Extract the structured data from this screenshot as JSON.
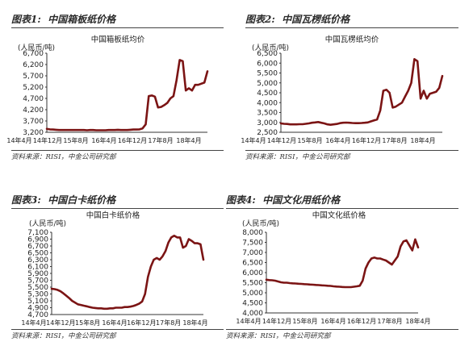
{
  "chart_data": [
    {
      "figure_label": "图表1:",
      "figure_title": "中国箱板纸价格",
      "source": "资料来源：RISI，中金公司研究部",
      "type": "line",
      "title": "中国箱板纸均价",
      "unit": "(人民币/吨)",
      "ylim": [
        3200,
        6700
      ],
      "yticks": [
        "3,200",
        "3,700",
        "4,200",
        "4,700",
        "5,200",
        "5,700",
        "6,200",
        "6,700"
      ],
      "ytick_values": [
        3200,
        3700,
        4200,
        4700,
        5200,
        5700,
        6200,
        6700
      ],
      "xticks": [
        "14年4月",
        "14年12月",
        "15年8月",
        "16年4月",
        "16年12月",
        "17年8月",
        "18年4月"
      ],
      "x": [
        "2014-01",
        "2014-02",
        "2014-03",
        "2014-04",
        "2014-05",
        "2014-06",
        "2014-07",
        "2014-08",
        "2014-09",
        "2014-10",
        "2014-11",
        "2014-12",
        "2015-01",
        "2015-02",
        "2015-03",
        "2015-04",
        "2015-05",
        "2015-06",
        "2015-07",
        "2015-08",
        "2015-09",
        "2015-10",
        "2015-11",
        "2015-12",
        "2016-01",
        "2016-02",
        "2016-03",
        "2016-04",
        "2016-05",
        "2016-06",
        "2016-07",
        "2016-08",
        "2016-09",
        "2016-10",
        "2016-11",
        "2016-12",
        "2017-01",
        "2017-02",
        "2017-03",
        "2017-04",
        "2017-05",
        "2017-06",
        "2017-07",
        "2017-08",
        "2017-09",
        "2017-10",
        "2017-11",
        "2017-12",
        "2018-01",
        "2018-02",
        "2018-03",
        "2018-04",
        "2018-05"
      ],
      "series": [
        {
          "color": "#7b1414",
          "values": [
            3350,
            3330,
            3320,
            3310,
            3300,
            3300,
            3300,
            3300,
            3300,
            3300,
            3300,
            3300,
            3300,
            3290,
            3300,
            3300,
            3290,
            3290,
            3290,
            3290,
            3300,
            3300,
            3300,
            3310,
            3300,
            3300,
            3300,
            3310,
            3320,
            3320,
            3330,
            3370,
            3550,
            4800,
            4830,
            4780,
            4300,
            4320,
            4400,
            4500,
            4700,
            4800,
            5500,
            6400,
            6350,
            5050,
            5150,
            5050,
            5300,
            5300,
            5350,
            5400,
            5900
          ]
        }
      ]
    },
    {
      "figure_label": "图表2:",
      "figure_title": "中国瓦楞纸价格",
      "source": "资料来源：RISI，中金公司研究部",
      "type": "line",
      "title": "中国瓦楞纸均价",
      "unit": "(人民币/吨)",
      "ylim": [
        2500,
        6500
      ],
      "yticks": [
        "2,500",
        "3,000",
        "3,500",
        "4,000",
        "4,500",
        "5,000",
        "5,500",
        "6,000",
        "6,500"
      ],
      "ytick_values": [
        2500,
        3000,
        3500,
        4000,
        4500,
        5000,
        5500,
        6000,
        6500
      ],
      "xticks": [
        "14年4月",
        "14年12月",
        "15年8月",
        "16年4月",
        "16年12月",
        "17年8月",
        "18年4月"
      ],
      "x": [
        "2014-01",
        "2014-02",
        "2014-03",
        "2014-04",
        "2014-05",
        "2014-06",
        "2014-07",
        "2014-08",
        "2014-09",
        "2014-10",
        "2014-11",
        "2014-12",
        "2015-01",
        "2015-02",
        "2015-03",
        "2015-04",
        "2015-05",
        "2015-06",
        "2015-07",
        "2015-08",
        "2015-09",
        "2015-10",
        "2015-11",
        "2015-12",
        "2016-01",
        "2016-02",
        "2016-03",
        "2016-04",
        "2016-05",
        "2016-06",
        "2016-07",
        "2016-08",
        "2016-09",
        "2016-10",
        "2016-11",
        "2016-12",
        "2017-01",
        "2017-02",
        "2017-03",
        "2017-04",
        "2017-05",
        "2017-06",
        "2017-07",
        "2017-08",
        "2017-09",
        "2017-10",
        "2017-11",
        "2017-12",
        "2018-01",
        "2018-02",
        "2018-03",
        "2018-04",
        "2018-05"
      ],
      "series": [
        {
          "color": "#7b1414",
          "values": [
            2950,
            2930,
            2920,
            2900,
            2900,
            2900,
            2910,
            2910,
            2930,
            2950,
            2980,
            3000,
            3020,
            2980,
            2950,
            2900,
            2880,
            2900,
            2920,
            2960,
            2980,
            2990,
            2980,
            2970,
            2960,
            2960,
            2970,
            2980,
            3000,
            3050,
            3100,
            3150,
            3600,
            4600,
            4650,
            4500,
            3750,
            3800,
            3900,
            4000,
            4300,
            4600,
            5000,
            6200,
            6100,
            4200,
            4600,
            4200,
            4450,
            4500,
            4550,
            4750,
            5350
          ]
        }
      ]
    },
    {
      "figure_label": "图表3:",
      "figure_title": "中国白卡纸价格",
      "source": "资料来源：RISI，中金公司研究部",
      "type": "line",
      "title": "中国白卡纸价格",
      "unit": "(人民币/吨)",
      "ylim": [
        4700,
        7100
      ],
      "yticks": [
        "4,700",
        "4,900",
        "5,100",
        "5,300",
        "5,500",
        "5,700",
        "5,900",
        "6,100",
        "6,300",
        "6,500",
        "6,700",
        "6,900",
        "7,100"
      ],
      "ytick_values": [
        4700,
        4900,
        5100,
        5300,
        5500,
        5700,
        5900,
        6100,
        6300,
        6500,
        6700,
        6900,
        7100
      ],
      "xticks": [
        "14年4月",
        "14年12月",
        "15年8月",
        "16年4月",
        "16年12月",
        "17年8月",
        "18年4月"
      ],
      "x": [
        "2014-01",
        "2014-02",
        "2014-03",
        "2014-04",
        "2014-05",
        "2014-06",
        "2014-07",
        "2014-08",
        "2014-09",
        "2014-10",
        "2014-11",
        "2014-12",
        "2015-01",
        "2015-02",
        "2015-03",
        "2015-04",
        "2015-05",
        "2015-06",
        "2015-07",
        "2015-08",
        "2015-09",
        "2015-10",
        "2015-11",
        "2015-12",
        "2016-01",
        "2016-02",
        "2016-03",
        "2016-04",
        "2016-05",
        "2016-06",
        "2016-07",
        "2016-08",
        "2016-09",
        "2016-10",
        "2016-11",
        "2016-12",
        "2017-01",
        "2017-02",
        "2017-03",
        "2017-04",
        "2017-05",
        "2017-06",
        "2017-07",
        "2017-08",
        "2017-09",
        "2017-10",
        "2017-11",
        "2017-12",
        "2018-01",
        "2018-02",
        "2018-03",
        "2018-04",
        "2018-05"
      ],
      "series": [
        {
          "color": "#7b1414",
          "values": [
            5450,
            5440,
            5420,
            5380,
            5320,
            5250,
            5180,
            5100,
            5050,
            5000,
            4980,
            4960,
            4940,
            4920,
            4900,
            4890,
            4880,
            4880,
            4870,
            4870,
            4880,
            4880,
            4900,
            4900,
            4900,
            4920,
            4920,
            4930,
            4950,
            4980,
            5020,
            5080,
            5300,
            5800,
            6100,
            6300,
            6350,
            6300,
            6400,
            6550,
            6800,
            6950,
            7000,
            6950,
            6950,
            6650,
            6700,
            6900,
            6850,
            6780,
            6780,
            6750,
            6300
          ]
        }
      ]
    },
    {
      "figure_label": "图表4:",
      "figure_title": "中国文化用纸价格",
      "source": "资料来源：RISI，中金公司研究部",
      "type": "line",
      "title": "中国文化纸价格",
      "unit": "(人民币/吨)",
      "ylim": [
        4000,
        8000
      ],
      "yticks": [
        "4,000",
        "4,500",
        "5,000",
        "5,500",
        "6,000",
        "6,500",
        "7,000",
        "7,500",
        "8,000"
      ],
      "ytick_values": [
        4000,
        4500,
        5000,
        5500,
        6000,
        6500,
        7000,
        7500,
        8000
      ],
      "xticks": [
        "14年4月",
        "14年12月",
        "15年8月",
        "16年4月",
        "16年12月",
        "17年8月",
        "18年4月"
      ],
      "x": [
        "2014-01",
        "2014-02",
        "2014-03",
        "2014-04",
        "2014-05",
        "2014-06",
        "2014-07",
        "2014-08",
        "2014-09",
        "2014-10",
        "2014-11",
        "2014-12",
        "2015-01",
        "2015-02",
        "2015-03",
        "2015-04",
        "2015-05",
        "2015-06",
        "2015-07",
        "2015-08",
        "2015-09",
        "2015-10",
        "2015-11",
        "2015-12",
        "2016-01",
        "2016-02",
        "2016-03",
        "2016-04",
        "2016-05",
        "2016-06",
        "2016-07",
        "2016-08",
        "2016-09",
        "2016-10",
        "2016-11",
        "2016-12",
        "2017-01",
        "2017-02",
        "2017-03",
        "2017-04",
        "2017-05",
        "2017-06",
        "2017-07",
        "2017-08",
        "2017-09",
        "2017-10",
        "2017-11",
        "2017-12",
        "2018-01",
        "2018-02",
        "2018-03",
        "2018-04",
        "2018-05"
      ],
      "series": [
        {
          "color": "#7b1414",
          "values": [
            5650,
            5630,
            5620,
            5600,
            5560,
            5520,
            5500,
            5500,
            5480,
            5470,
            5460,
            5450,
            5440,
            5430,
            5420,
            5410,
            5400,
            5390,
            5380,
            5370,
            5360,
            5350,
            5340,
            5320,
            5310,
            5300,
            5290,
            5280,
            5280,
            5280,
            5300,
            5320,
            5350,
            5600,
            6200,
            6500,
            6700,
            6750,
            6700,
            6700,
            6650,
            6600,
            6500,
            6400,
            6600,
            6800,
            7300,
            7550,
            7600,
            7350,
            7100,
            7650,
            7250
          ]
        }
      ]
    }
  ]
}
